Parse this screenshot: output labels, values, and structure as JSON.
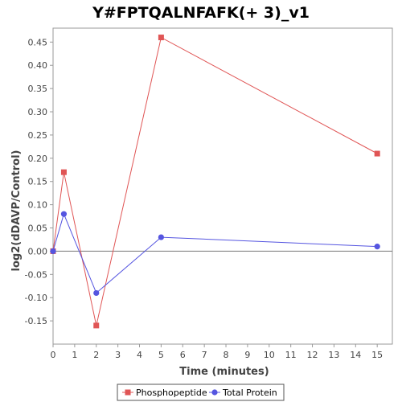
{
  "chart_data": {
    "type": "line",
    "title": "Y#FPTQALNFAFK(+ 3)_v1",
    "xlabel": "Time (minutes)",
    "ylabel": "log2(dDAVP/Control)",
    "xlim": [
      0,
      15.7
    ],
    "ylim": [
      -0.2,
      0.48
    ],
    "x_ticks": [
      0,
      1,
      2,
      3,
      4,
      5,
      6,
      7,
      8,
      9,
      10,
      11,
      12,
      13,
      14,
      15
    ],
    "y_ticks": [
      -0.15,
      -0.1,
      -0.05,
      0.0,
      0.05,
      0.1,
      0.15,
      0.2,
      0.25,
      0.3,
      0.35,
      0.4,
      0.45
    ],
    "y_tick_labels": [
      "-0.15",
      "-0.10",
      "-0.05",
      "0.00",
      "0.05",
      "0.10",
      "0.15",
      "0.20",
      "0.25",
      "0.30",
      "0.35",
      "0.40",
      "0.45"
    ],
    "zero_line": true,
    "grid": false,
    "legend_position": "bottom",
    "series": [
      {
        "name": "Phosphopeptide",
        "color": "#e05555",
        "marker": "square",
        "x": [
          0,
          0.5,
          2,
          5,
          15
        ],
        "y": [
          0.0,
          0.17,
          -0.16,
          0.46,
          0.21
        ]
      },
      {
        "name": "Total Protein",
        "color": "#5555e0",
        "marker": "circle",
        "x": [
          0,
          0.5,
          2,
          5,
          15
        ],
        "y": [
          0.0,
          0.08,
          -0.09,
          0.03,
          0.01
        ]
      }
    ]
  }
}
